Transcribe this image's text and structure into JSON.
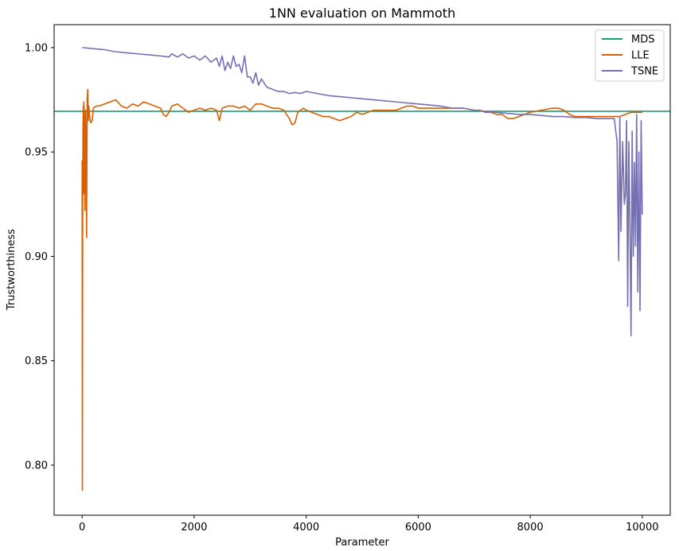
{
  "chart_data": {
    "type": "line",
    "title": "1NN evaluation on Mammoth",
    "xlabel": "Parameter",
    "ylabel": "Trustworthiness",
    "xlim": [
      -500,
      10500
    ],
    "ylim": [
      0.776,
      1.011
    ],
    "xticks": [
      0,
      2000,
      4000,
      6000,
      8000,
      10000
    ],
    "xtick_labels": [
      "0",
      "2000",
      "4000",
      "6000",
      "8000",
      "10000"
    ],
    "yticks": [
      0.8,
      0.85,
      0.9,
      0.95,
      1.0
    ],
    "ytick_labels": [
      "0.80",
      "0.85",
      "0.90",
      "0.95",
      "1.00"
    ],
    "grid": false,
    "legend": "top-right",
    "series": [
      {
        "name": "MDS",
        "color": "#1b9e77",
        "x": [
          -500,
          10500
        ],
        "y": [
          0.9695,
          0.9695
        ]
      },
      {
        "name": "LLE",
        "color": "#d95f02",
        "x": [
          0,
          5,
          10,
          15,
          20,
          25,
          30,
          40,
          50,
          60,
          70,
          80,
          90,
          100,
          110,
          120,
          130,
          150,
          180,
          200,
          250,
          300,
          400,
          500,
          600,
          700,
          800,
          900,
          1000,
          1100,
          1200,
          1300,
          1400,
          1450,
          1500,
          1550,
          1600,
          1700,
          1800,
          1900,
          2000,
          2100,
          2200,
          2300,
          2400,
          2450,
          2500,
          2600,
          2700,
          2800,
          2900,
          3000,
          3100,
          3200,
          3300,
          3400,
          3500,
          3600,
          3700,
          3750,
          3800,
          3850,
          3900,
          3950,
          4000,
          4100,
          4200,
          4300,
          4400,
          4500,
          4600,
          4700,
          4800,
          4900,
          5000,
          5100,
          5200,
          5300,
          5400,
          5500,
          5600,
          5700,
          5800,
          5900,
          6000,
          6200,
          6400,
          6600,
          6800,
          7000,
          7100,
          7200,
          7300,
          7400,
          7500,
          7600,
          7700,
          7800,
          7900,
          8000,
          8200,
          8400,
          8500,
          8600,
          8700,
          8800,
          8900,
          9000,
          9100,
          9200,
          9300,
          9400,
          9500,
          9600,
          9700,
          9800,
          9900,
          10000
        ],
        "y": [
          0.946,
          0.788,
          0.93,
          0.96,
          0.972,
          0.93,
          0.974,
          0.965,
          0.922,
          0.97,
          0.955,
          0.909,
          0.975,
          0.98,
          0.965,
          0.972,
          0.968,
          0.964,
          0.965,
          0.971,
          0.972,
          0.972,
          0.973,
          0.974,
          0.975,
          0.972,
          0.971,
          0.973,
          0.972,
          0.974,
          0.973,
          0.972,
          0.971,
          0.968,
          0.967,
          0.969,
          0.972,
          0.973,
          0.971,
          0.969,
          0.97,
          0.971,
          0.97,
          0.971,
          0.97,
          0.965,
          0.971,
          0.972,
          0.972,
          0.971,
          0.972,
          0.97,
          0.973,
          0.973,
          0.972,
          0.971,
          0.971,
          0.97,
          0.966,
          0.963,
          0.964,
          0.969,
          0.97,
          0.971,
          0.97,
          0.969,
          0.968,
          0.967,
          0.967,
          0.966,
          0.965,
          0.966,
          0.967,
          0.969,
          0.968,
          0.969,
          0.97,
          0.97,
          0.97,
          0.97,
          0.97,
          0.971,
          0.972,
          0.972,
          0.971,
          0.971,
          0.971,
          0.971,
          0.971,
          0.97,
          0.97,
          0.969,
          0.969,
          0.968,
          0.968,
          0.966,
          0.966,
          0.967,
          0.968,
          0.969,
          0.97,
          0.971,
          0.971,
          0.97,
          0.968,
          0.967,
          0.967,
          0.967,
          0.967,
          0.967,
          0.967,
          0.967,
          0.967,
          0.967,
          0.968,
          0.969,
          0.969,
          0.969
        ]
      },
      {
        "name": "TSNE",
        "color": "#7570b3",
        "x": [
          0,
          200,
          400,
          600,
          800,
          1000,
          1200,
          1400,
          1550,
          1600,
          1700,
          1800,
          1900,
          2000,
          2100,
          2200,
          2300,
          2400,
          2450,
          2500,
          2550,
          2600,
          2650,
          2700,
          2750,
          2800,
          2850,
          2900,
          2950,
          3000,
          3050,
          3100,
          3150,
          3200,
          3300,
          3400,
          3500,
          3600,
          3700,
          3800,
          3900,
          4000,
          4200,
          4400,
          4600,
          4800,
          5000,
          5200,
          5400,
          5600,
          5800,
          6000,
          6200,
          6400,
          6600,
          6800,
          7000,
          7200,
          7400,
          7600,
          7800,
          8000,
          8200,
          8400,
          8600,
          8800,
          9000,
          9200,
          9400,
          9500,
          9550,
          9580,
          9600,
          9620,
          9650,
          9680,
          9700,
          9720,
          9740,
          9760,
          9780,
          9800,
          9820,
          9840,
          9860,
          9880,
          9900,
          9920,
          9940,
          9960,
          9980,
          10000
        ],
        "y": [
          1.0,
          0.9995,
          0.999,
          0.998,
          0.9975,
          0.997,
          0.9965,
          0.996,
          0.9955,
          0.997,
          0.9955,
          0.997,
          0.995,
          0.996,
          0.994,
          0.996,
          0.993,
          0.995,
          0.991,
          0.996,
          0.989,
          0.993,
          0.99,
          0.996,
          0.991,
          0.992,
          0.988,
          0.996,
          0.986,
          0.986,
          0.983,
          0.988,
          0.982,
          0.985,
          0.981,
          0.98,
          0.979,
          0.979,
          0.978,
          0.9785,
          0.978,
          0.979,
          0.978,
          0.977,
          0.9765,
          0.976,
          0.9755,
          0.975,
          0.9745,
          0.974,
          0.9735,
          0.973,
          0.9725,
          0.972,
          0.971,
          0.971,
          0.97,
          0.9695,
          0.969,
          0.9685,
          0.968,
          0.968,
          0.9675,
          0.967,
          0.967,
          0.9665,
          0.9665,
          0.966,
          0.966,
          0.966,
          0.955,
          0.898,
          0.967,
          0.912,
          0.955,
          0.925,
          0.93,
          0.965,
          0.876,
          0.955,
          0.915,
          0.862,
          0.96,
          0.9,
          0.945,
          0.905,
          0.968,
          0.883,
          0.95,
          0.874,
          0.965,
          0.92
        ]
      }
    ]
  }
}
